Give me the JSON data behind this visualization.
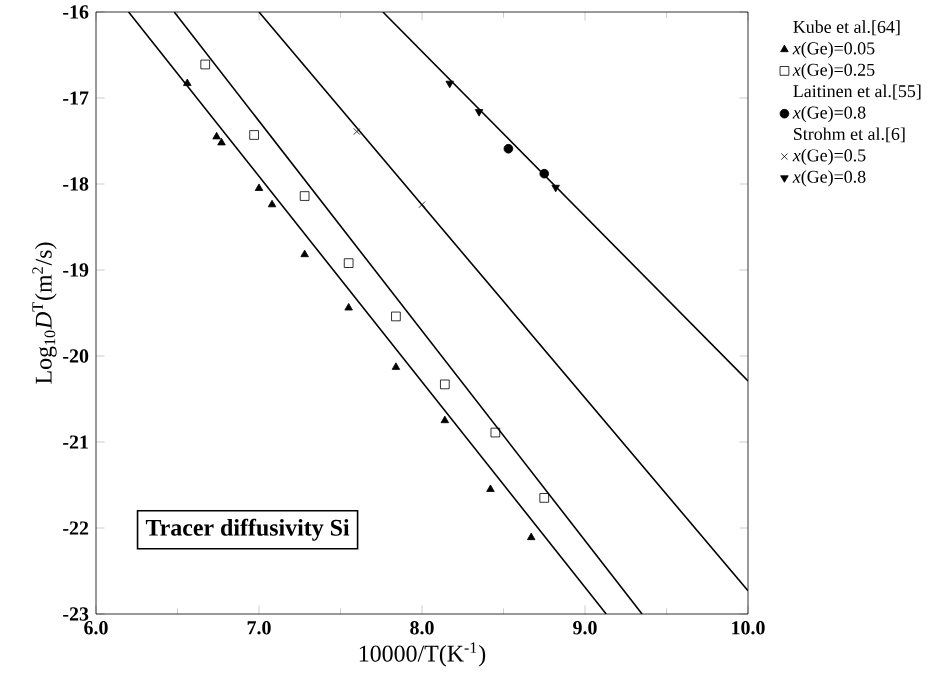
{
  "chart_data": {
    "type": "scatter",
    "xlabel": "10000/T(K$^{-1}$)",
    "ylabel": "Log$_{10}$*D*$^{T}$(m$^{2}$/s)",
    "xlim": [
      6,
      10
    ],
    "ylim": [
      -23,
      -16
    ],
    "xticks": [
      {
        "value": 6,
        "label": "6.0"
      },
      {
        "value": 7,
        "label": "7.0"
      },
      {
        "value": 8,
        "label": "8.0"
      },
      {
        "value": 9,
        "label": "9.0"
      },
      {
        "value": 10,
        "label": "10.0"
      }
    ],
    "yticks": [
      -23,
      -22,
      -21,
      -20,
      -19,
      -18,
      -17,
      -16
    ],
    "legend": "top right",
    "grid": false,
    "annotations": [
      "Kube et al.[64]",
      "Laitinen et al.[55]",
      "Strohm et al.[6]",
      "Tracer diffusivity Si"
    ],
    "series": [
      {
        "name": "*x*(Ge)=0.05",
        "color": "#000000",
        "marker": "triangle",
        "x": [
          6.56,
          6.74,
          6.77,
          7.0,
          7.08,
          7.28,
          7.55,
          7.84,
          8.14,
          8.42,
          8.67
        ],
        "values": [
          -16.83,
          -17.45,
          -17.52,
          -18.05,
          -18.24,
          -18.82,
          -19.44,
          -20.13,
          -20.75,
          -21.55,
          -22.11
        ]
      },
      {
        "name": "*x*(Ge)=0.25",
        "color": "#000000",
        "marker": "square",
        "x": [
          6.67,
          6.97,
          7.28,
          7.55,
          7.84,
          8.14,
          8.45,
          8.75
        ],
        "values": [
          -16.61,
          -17.43,
          -18.14,
          -18.92,
          -19.54,
          -20.33,
          -20.89,
          -21.65
        ]
      },
      {
        "name": "*x*(Ge)=0.8",
        "color": "#000000",
        "marker": "circle",
        "x": [
          8.53,
          8.75
        ],
        "values": [
          -17.59,
          -17.88
        ]
      },
      {
        "name": "*x*(Ge)=0.5",
        "color": "#000000",
        "marker": "cross",
        "x": [
          7.6,
          8.0
        ],
        "values": [
          -17.39,
          -18.24
        ]
      },
      {
        "name": "*x*(Ge)=0.8",
        "color": "#000000",
        "marker": "triangle down",
        "x": [
          8.17,
          8.35,
          8.82
        ],
        "values": [
          -16.83,
          -17.16,
          -18.04
        ]
      },
      {
        "type": "line",
        "color": "#000000",
        "marker": "none",
        "x": [
          6.2,
          9.13
        ],
        "values": [
          -16,
          -23
        ]
      },
      {
        "type": "line",
        "color": "#000000",
        "marker": "none",
        "x": [
          6.48,
          9.35
        ],
        "values": [
          -16,
          -23
        ]
      },
      {
        "type": "line",
        "color": "#000000",
        "marker": "none",
        "x": [
          7.0,
          10.0
        ],
        "values": [
          -16,
          -22.73
        ]
      },
      {
        "type": "line",
        "color": "#000000",
        "marker": "none",
        "x": [
          7.76,
          10.0
        ],
        "values": [
          -16,
          -20.29
        ]
      }
    ]
  }
}
